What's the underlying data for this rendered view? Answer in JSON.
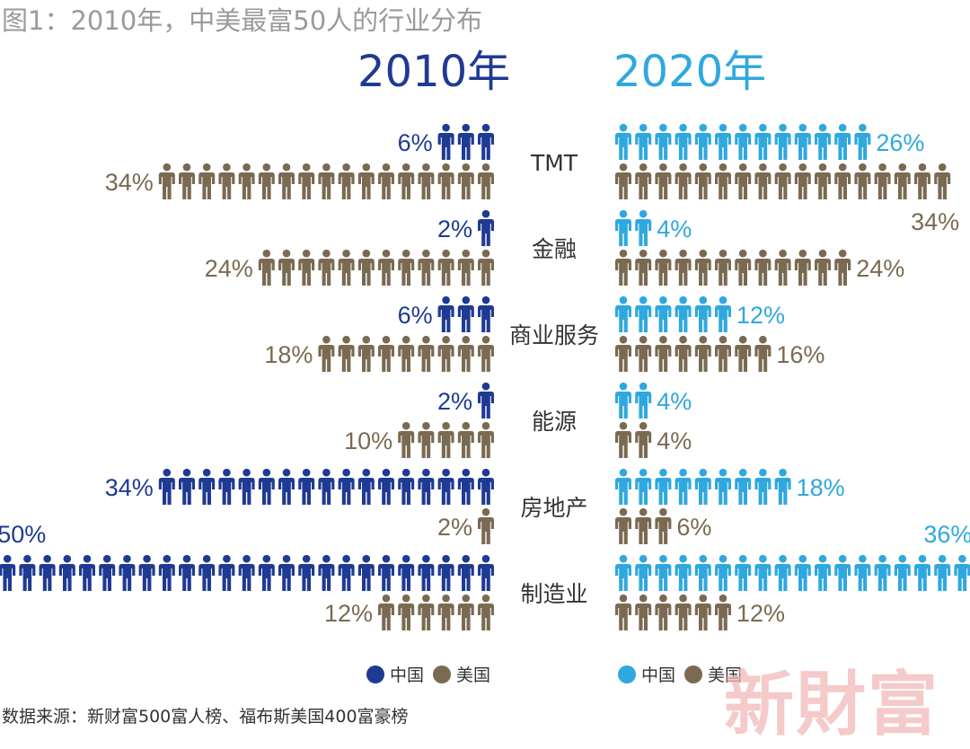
{
  "title": "图1：2010年，中美最富50人的行业分布",
  "source_note": "数据来源：新财富500富人榜、福布斯美国400富豪榜",
  "watermark": "新財富",
  "colors": {
    "china_2010": "#1f3a93",
    "china_2020": "#2fa8df",
    "us": "#7a6a52",
    "category_text": "#333333"
  },
  "icon": "person-icon",
  "chart_data": {
    "type": "pictogram",
    "unit_note": "",
    "panels": [
      {
        "year": "2010年",
        "china_color": "#1f3a93",
        "us_color": "#7a6a52",
        "legend": [
          {
            "name": "中国",
            "color": "#1f3a93"
          },
          {
            "name": "美国",
            "color": "#7a6a52"
          }
        ]
      },
      {
        "year": "2020年",
        "china_color": "#2fa8df",
        "us_color": "#7a6a52",
        "legend": [
          {
            "name": "中国",
            "color": "#2fa8df"
          },
          {
            "name": "美国",
            "color": "#7a6a52"
          }
        ]
      }
    ],
    "categories": [
      "TMT",
      "金融",
      "商业服务",
      "能源",
      "房地产",
      "制造业"
    ],
    "series": [
      {
        "name": "中国 2010",
        "values": [
          6,
          2,
          6,
          2,
          34,
          50
        ],
        "icons": [
          3,
          1,
          3,
          1,
          17,
          25
        ]
      },
      {
        "name": "美国 2010",
        "values": [
          34,
          24,
          18,
          10,
          2,
          12
        ],
        "icons": [
          17,
          12,
          9,
          5,
          1,
          6
        ]
      },
      {
        "name": "中国 2020",
        "values": [
          26,
          4,
          12,
          4,
          18,
          36
        ],
        "icons": [
          13,
          2,
          6,
          2,
          9,
          18
        ]
      },
      {
        "name": "美国 2020",
        "values": [
          34,
          24,
          16,
          4,
          6,
          12
        ],
        "icons": [
          17,
          12,
          8,
          2,
          3,
          6
        ]
      }
    ],
    "labels": {
      "china_2010": [
        "6%",
        "2%",
        "6%",
        "2%",
        "34%",
        "50%"
      ],
      "us_2010": [
        "34%",
        "24%",
        "18%",
        "10%",
        "2%",
        "12%"
      ],
      "china_2020": [
        "26%",
        "4%",
        "12%",
        "4%",
        "18%",
        "36%"
      ],
      "us_2020": [
        "34%",
        "24%",
        "16%",
        "4%",
        "6%",
        "12%"
      ]
    }
  }
}
